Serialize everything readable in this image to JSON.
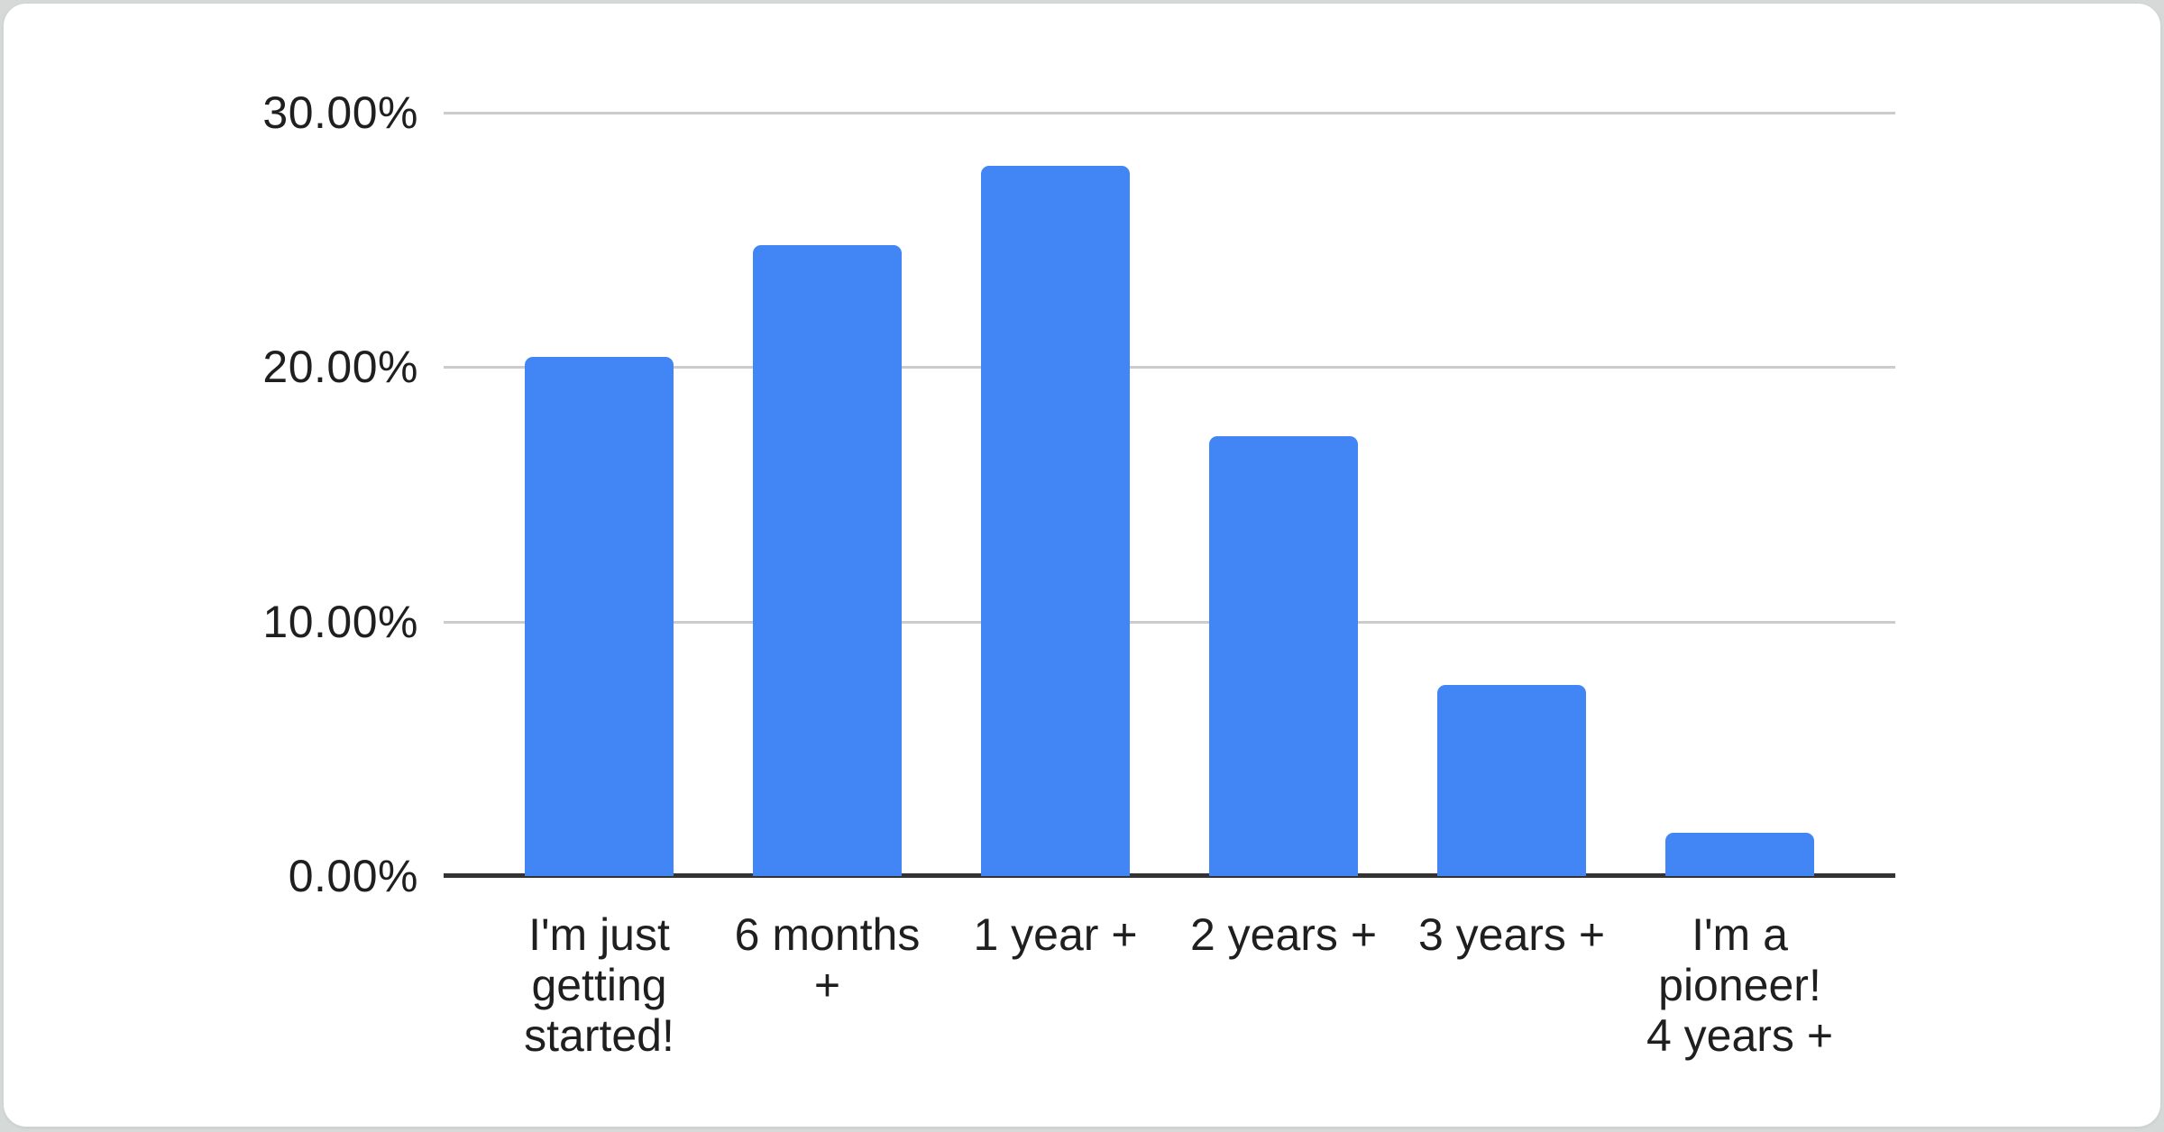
{
  "chart_data": {
    "type": "bar",
    "title": "",
    "xlabel": "",
    "ylabel": "",
    "categories": [
      "I'm just getting started!",
      "6 months +",
      "1 year +",
      "2 years +",
      "3 years +",
      "I'm a pioneer! 4 years +"
    ],
    "category_label_lines": [
      [
        "I'm just",
        "getting",
        "started!"
      ],
      [
        "6 months",
        "+"
      ],
      [
        "1 year +"
      ],
      [
        "2 years +"
      ],
      [
        "3 years +"
      ],
      [
        "I'm a",
        "pioneer!",
        "4 years +"
      ]
    ],
    "values": [
      20.4,
      24.8,
      27.9,
      17.3,
      7.5,
      1.7
    ],
    "value_unit": "percent",
    "ylim": [
      0,
      30
    ],
    "y_ticks": [
      {
        "value": 0,
        "label": "0.00%"
      },
      {
        "value": 10,
        "label": "10.00%"
      },
      {
        "value": 20,
        "label": "20.00%"
      },
      {
        "value": 30,
        "label": "30.00%"
      }
    ],
    "grid": true,
    "legend": "none",
    "colors": {
      "bar": "#4285f4",
      "gridline": "#cccccc",
      "axis_line": "#333333",
      "tick_text": "#1f1f1f",
      "card_background": "#ffffff",
      "page_background": "#d5d9d8"
    }
  }
}
